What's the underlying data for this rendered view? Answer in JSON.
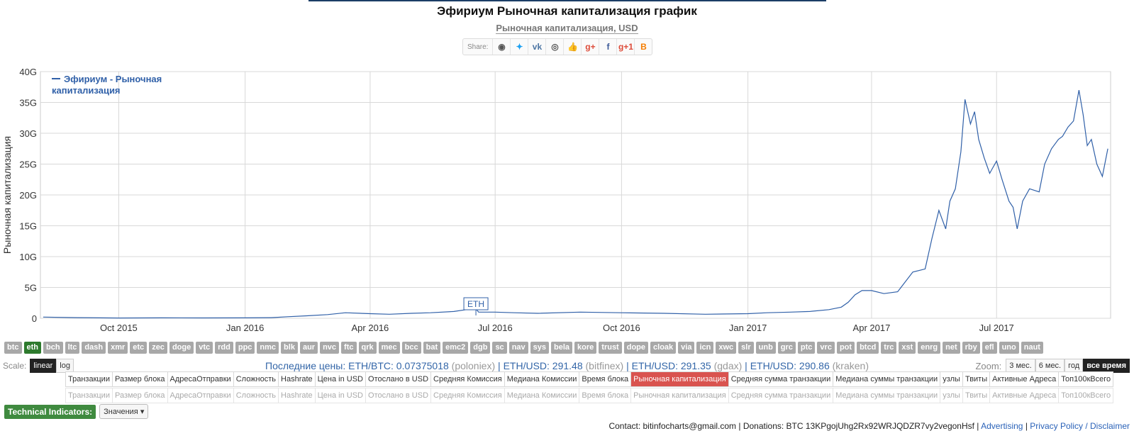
{
  "page": {
    "title": "Эфириум Рыночная капитализация график",
    "subtitle": "Рыночная капитализация, USD"
  },
  "share": {
    "label": "Share:",
    "icons": [
      {
        "name": "reddit-icon",
        "glyph": "◉",
        "color": "#555555"
      },
      {
        "name": "twitter-icon",
        "glyph": "✦",
        "color": "#1da1f2"
      },
      {
        "name": "vk-icon",
        "glyph": "vk",
        "color": "#4c75a3"
      },
      {
        "name": "weibo-icon",
        "glyph": "◎",
        "color": "#555555"
      },
      {
        "name": "like-icon",
        "glyph": "👍",
        "color": "#4c75a3"
      },
      {
        "name": "google-plus-icon",
        "glyph": "g+",
        "color": "#dd4b39"
      },
      {
        "name": "facebook-icon",
        "glyph": "f",
        "color": "#3b5998"
      },
      {
        "name": "google-plus-one-icon",
        "glyph": "g+1",
        "color": "#dd4b39"
      },
      {
        "name": "blogger-icon",
        "glyph": "B",
        "color": "#f57d00"
      }
    ]
  },
  "chart_data": {
    "type": "line",
    "title": "Эфириум Рыночная капитализация график",
    "ylabel": "Рыночная капитализация",
    "ylim": [
      0,
      40
    ],
    "y_unit": "G",
    "yticks": [
      "0",
      "5G",
      "10G",
      "15G",
      "20G",
      "25G",
      "30G",
      "35G",
      "40G"
    ],
    "xticks": [
      "Oct 2015",
      "Jan 2016",
      "Apr 2016",
      "Jul 2016",
      "Oct 2016",
      "Jan 2017",
      "Apr 2017",
      "Jul 2017"
    ],
    "grid": true,
    "line_color": "#3060a8",
    "legend": {
      "label": "Эфириум - Рыночная капитализация",
      "placement": "top-left"
    },
    "annotation": {
      "label": "ETH",
      "x": "2016-06-17"
    },
    "series": [
      {
        "name": "Эфириум - Рыночная капитализация",
        "x": [
          "2015-08-07",
          "2015-09-01",
          "2015-10-01",
          "2015-11-01",
          "2015-12-01",
          "2016-01-01",
          "2016-01-20",
          "2016-02-01",
          "2016-02-15",
          "2016-03-01",
          "2016-03-14",
          "2016-04-01",
          "2016-04-15",
          "2016-05-01",
          "2016-05-15",
          "2016-06-01",
          "2016-06-10",
          "2016-06-17",
          "2016-06-19",
          "2016-07-01",
          "2016-07-15",
          "2016-08-01",
          "2016-09-01",
          "2016-10-01",
          "2016-11-01",
          "2016-12-01",
          "2017-01-01",
          "2017-01-15",
          "2017-02-01",
          "2017-02-15",
          "2017-03-01",
          "2017-03-10",
          "2017-03-15",
          "2017-03-20",
          "2017-03-25",
          "2017-04-01",
          "2017-04-10",
          "2017-04-20",
          "2017-05-01",
          "2017-05-10",
          "2017-05-15",
          "2017-05-20",
          "2017-05-25",
          "2017-05-28",
          "2017-06-01",
          "2017-06-05",
          "2017-06-08",
          "2017-06-12",
          "2017-06-15",
          "2017-06-18",
          "2017-06-22",
          "2017-06-26",
          "2017-07-01",
          "2017-07-05",
          "2017-07-10",
          "2017-07-13",
          "2017-07-16",
          "2017-07-20",
          "2017-07-25",
          "2017-08-01",
          "2017-08-05",
          "2017-08-10",
          "2017-08-15",
          "2017-08-18",
          "2017-08-22",
          "2017-08-26",
          "2017-08-30",
          "2017-09-02",
          "2017-09-05",
          "2017-09-08",
          "2017-09-12",
          "2017-09-16",
          "2017-09-20"
        ],
        "y": [
          0.2,
          0.1,
          0.05,
          0.07,
          0.06,
          0.07,
          0.1,
          0.25,
          0.4,
          0.6,
          0.9,
          0.75,
          0.65,
          0.8,
          0.9,
          1.1,
          1.4,
          1.5,
          1.0,
          1.0,
          0.9,
          0.8,
          1.0,
          0.9,
          0.8,
          0.65,
          0.75,
          0.9,
          1.0,
          1.1,
          1.4,
          1.8,
          2.6,
          3.8,
          4.5,
          4.5,
          4.0,
          4.3,
          7.5,
          8.0,
          13.0,
          17.5,
          14.5,
          19.0,
          21.0,
          27.0,
          35.5,
          31.5,
          33.5,
          29.0,
          26.0,
          23.5,
          25.5,
          22.5,
          19.0,
          18.0,
          14.5,
          19.0,
          21.0,
          20.5,
          25.0,
          27.5,
          29.0,
          29.5,
          31.0,
          32.0,
          37.0,
          33.0,
          28.0,
          29.0,
          25.0,
          23.0,
          27.5
        ]
      }
    ]
  },
  "coins": [
    "btc",
    "eth",
    "bch",
    "ltc",
    "dash",
    "xmr",
    "etc",
    "zec",
    "doge",
    "vtc",
    "rdd",
    "ppc",
    "nmc",
    "blk",
    "aur",
    "nvc",
    "ftc",
    "qrk",
    "mec",
    "bcc",
    "bat",
    "emc2",
    "dgb",
    "sc",
    "nav",
    "sys",
    "bela",
    "kore",
    "trust",
    "dope",
    "cloak",
    "via",
    "icn",
    "xwc",
    "slr",
    "unb",
    "grc",
    "ptc",
    "vrc",
    "pot",
    "btcd",
    "trc",
    "xst",
    "enrg",
    "net",
    "rby",
    "efl",
    "uno",
    "naut"
  ],
  "active_coin": "eth",
  "scale": {
    "label": "Scale:",
    "options": [
      "linear",
      "log"
    ],
    "active": "linear"
  },
  "prices": {
    "prefix": "Последние цены:",
    "items": [
      {
        "pair": "ETH/BTC:",
        "value": "0.07375018",
        "exchange": "(poloniex)"
      },
      {
        "pair": "ETH/USD:",
        "value": "291.48",
        "exchange": "(bitfinex)"
      },
      {
        "pair": "ETH/USD:",
        "value": "291.35",
        "exchange": "(gdax)"
      },
      {
        "pair": "ETH/USD:",
        "value": "290.86",
        "exchange": "(kraken)"
      }
    ]
  },
  "zoom": {
    "label": "Zoom:",
    "options": [
      "3 мес.",
      "6 мес.",
      "год",
      "все время"
    ],
    "active": "все время"
  },
  "metrics": [
    "Транзакции",
    "Размер блока",
    "АдресаОтправки",
    "Сложность",
    "Hashrate",
    "Цена in USD",
    "Отослано в USD",
    "Средняя Комиссия",
    "Медиана Комиссии",
    "Время блока",
    "Рыночная капитализация",
    "Средняя сумма транзакции",
    "Медиана суммы транзакции",
    "узлы",
    "Твиты",
    "Активные Адреса",
    "Топ100кВсего"
  ],
  "active_metric": "Рыночная капитализация",
  "technical": {
    "label": "Technical Indicators:",
    "dropdown": "Значения"
  },
  "footer": {
    "contact": "Contact: bitinfocharts@gmail.com | Donations: BTC 13KPgojUhg2Rx92WRJQDZR7vy2vegonHsf  |",
    "advertising": "Advertising",
    "sep": "|",
    "privacy": "Privacy Policy / Disclaimer"
  }
}
